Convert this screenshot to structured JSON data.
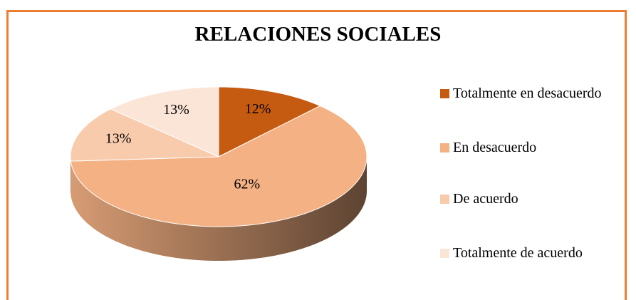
{
  "chart_data": {
    "type": "pie3d",
    "title": "RELACIONES SOCIALES",
    "categories": [
      "Totalmente en desacuerdo",
      "En desacuerdo",
      "De acuerdo",
      "Totalmente de acuerdo"
    ],
    "values": [
      12,
      62,
      13,
      13
    ],
    "value_labels": [
      "12%",
      "62%",
      "13%",
      "13%"
    ],
    "colors": [
      "#c55a11",
      "#f4b183",
      "#f8cbad",
      "#fbe5d6"
    ],
    "legend": "right"
  }
}
